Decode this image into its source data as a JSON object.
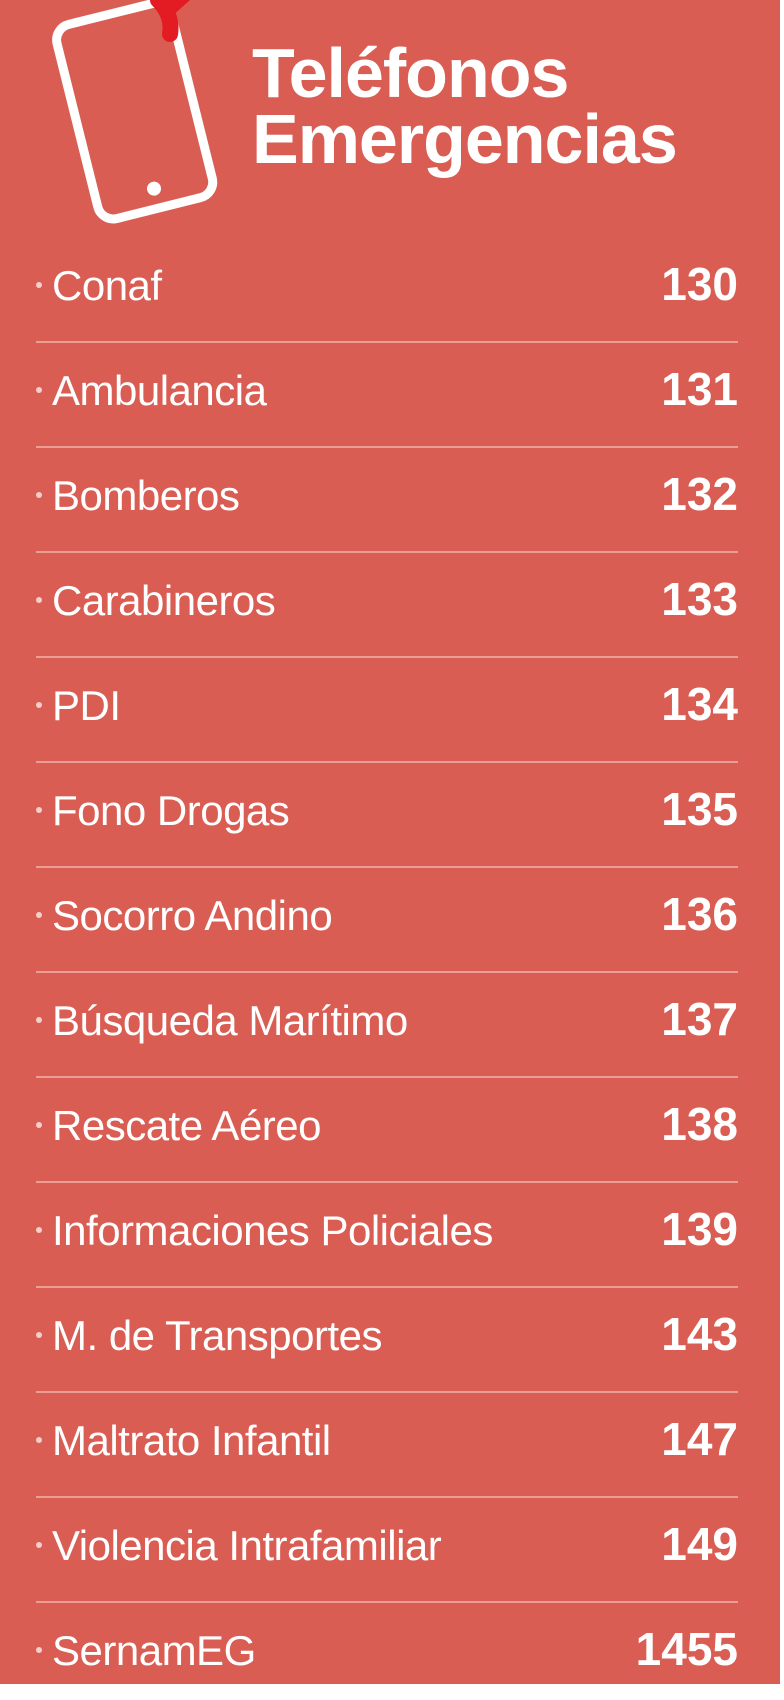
{
  "header": {
    "title_line1": "Teléfonos",
    "title_line2": "Emergencias",
    "icon": "phone-icon",
    "colors": {
      "background": "#d95d53",
      "text": "#ffffff",
      "accent": "#e31b23",
      "divider": "#ec9d96"
    }
  },
  "entries": [
    {
      "name": "Conaf",
      "number": "130"
    },
    {
      "name": "Ambulancia",
      "number": "131"
    },
    {
      "name": "Bomberos",
      "number": "132"
    },
    {
      "name": "Carabineros",
      "number": "133"
    },
    {
      "name": "PDI",
      "number": "134"
    },
    {
      "name": "Fono Drogas",
      "number": "135"
    },
    {
      "name": "Socorro Andino",
      "number": "136"
    },
    {
      "name": "Búsqueda Marítimo",
      "number": "137"
    },
    {
      "name": "Rescate Aéreo",
      "number": "138"
    },
    {
      "name": "Informaciones Policiales",
      "number": "139"
    },
    {
      "name": "M. de Transportes",
      "number": "143"
    },
    {
      "name": "Maltrato Infantil",
      "number": "147"
    },
    {
      "name": "Violencia Intrafamiliar",
      "number": "149"
    },
    {
      "name": "SernamEG",
      "number": "1455"
    }
  ]
}
